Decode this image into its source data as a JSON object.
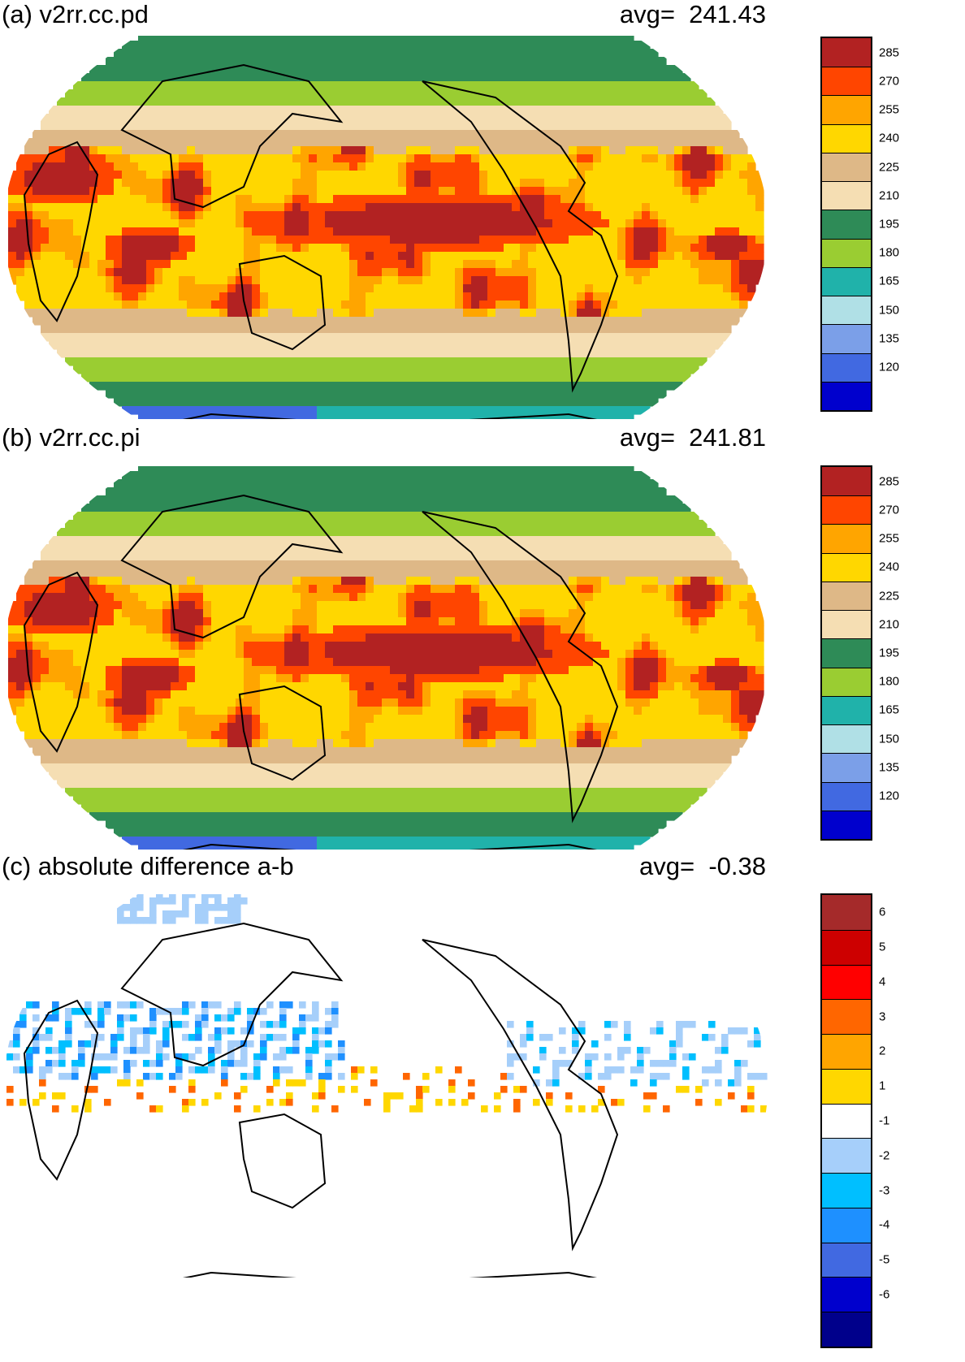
{
  "panels": [
    {
      "title": "(a) v2rr.cc.pd",
      "avg_label": "avg=",
      "avg_value": "241.43",
      "variant": "pd"
    },
    {
      "title": "(b) v2rr.cc.pi",
      "avg_label": "avg=",
      "avg_value": "241.81",
      "variant": "pi"
    },
    {
      "title": "(c) absolute difference a-b",
      "avg_label": "avg=",
      "avg_value": "-0.38",
      "variant": "diff"
    }
  ],
  "colorbars": {
    "field": {
      "ticks": [
        "285",
        "270",
        "255",
        "240",
        "225",
        "210",
        "195",
        "180",
        "165",
        "150",
        "135",
        "120"
      ],
      "colors": [
        "#b22222",
        "#ff4500",
        "#ffa500",
        "#ffd700",
        "#deb887",
        "#f5deb3",
        "#2e8b57",
        "#9acd32",
        "#20b2aa",
        "#b0e0e6",
        "#7b9fe8",
        "#4169e1",
        "#0000cd"
      ]
    },
    "diff": {
      "ticks": [
        "6",
        "5",
        "4",
        "3",
        "2",
        "1",
        "-1",
        "-2",
        "-3",
        "-4",
        "-5",
        "-6"
      ],
      "colors": [
        "#a52a2a",
        "#cd0000",
        "#ff0000",
        "#ff6600",
        "#ffa500",
        "#ffd700",
        "#ffffff",
        "#a6cffa",
        "#00bfff",
        "#1e90ff",
        "#4169e1",
        "#0000cd",
        "#00008b"
      ]
    }
  }
}
